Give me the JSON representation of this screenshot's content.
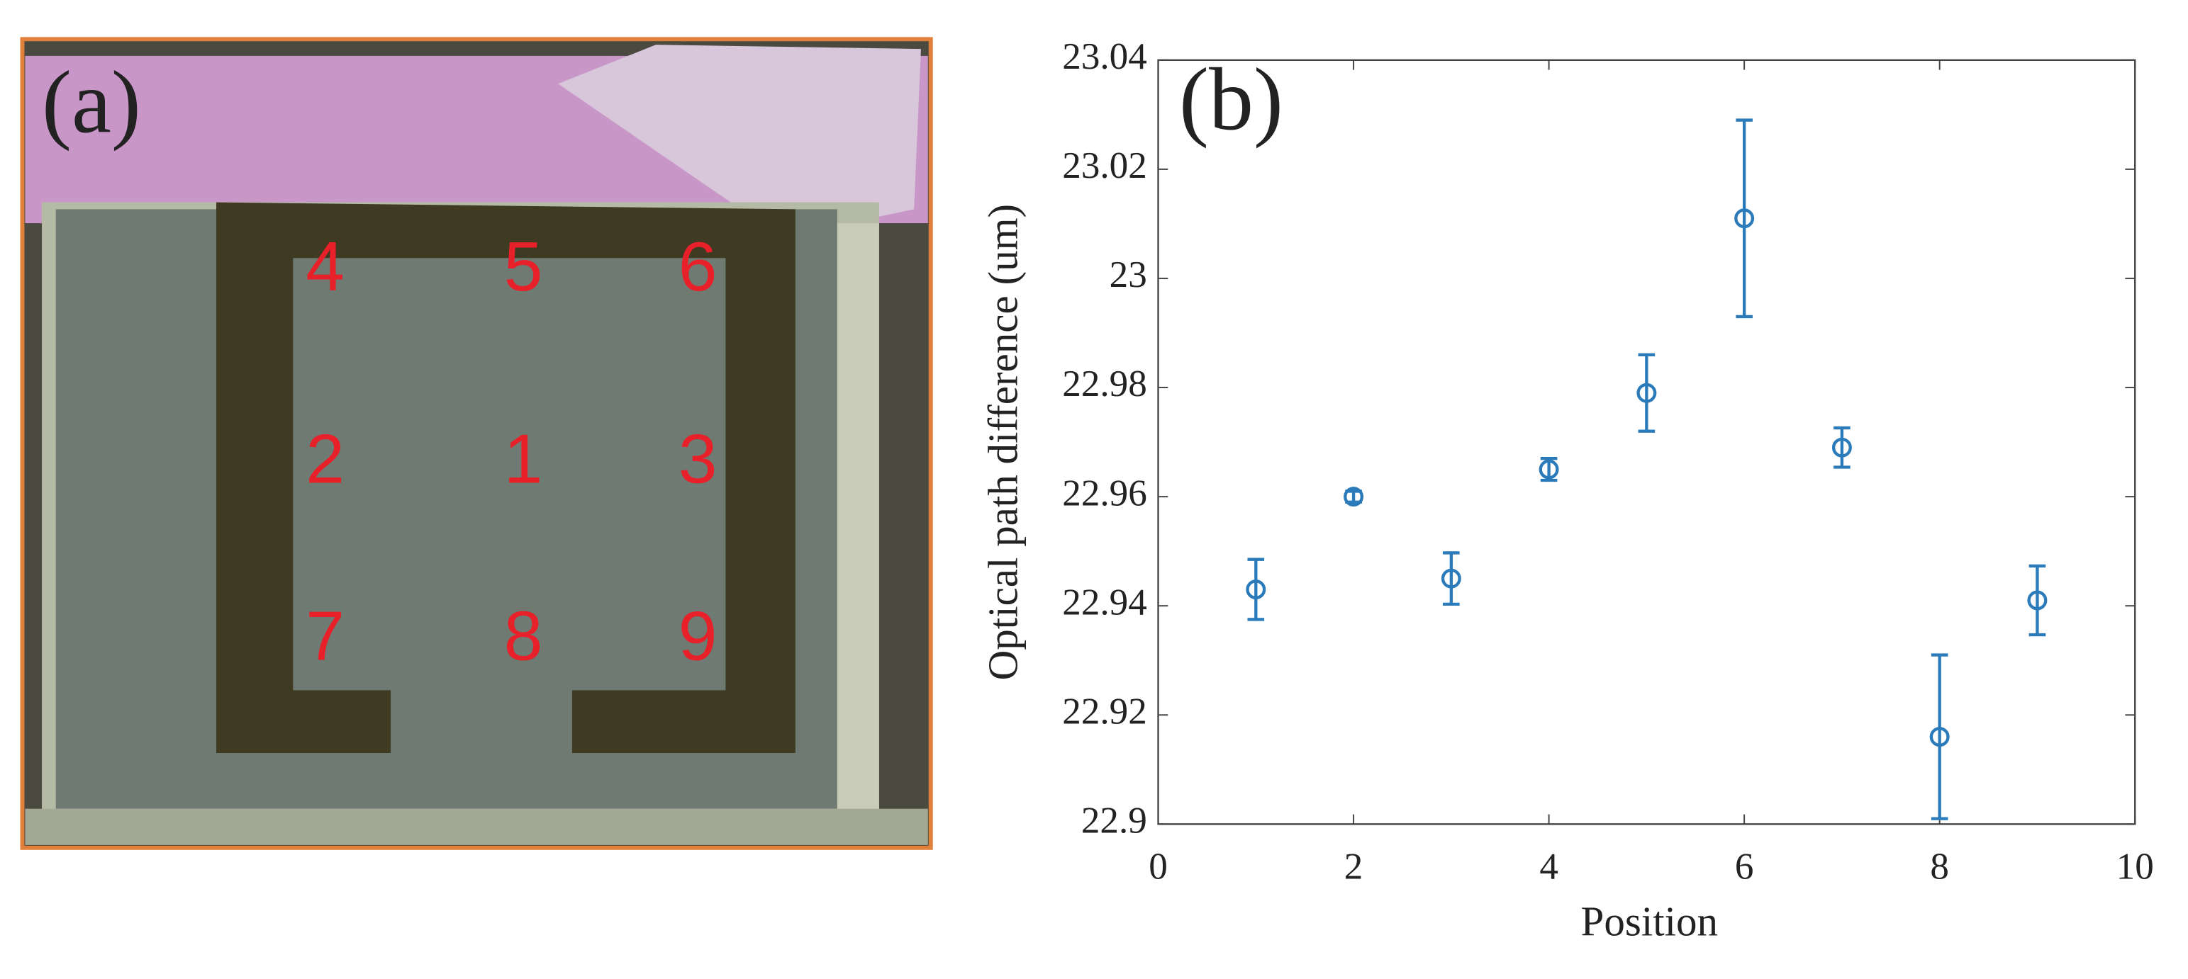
{
  "photo": {
    "label": "(a)",
    "position_labels": [
      "4",
      "5",
      "6",
      "2",
      "1",
      "3",
      "7",
      "8",
      "9"
    ]
  },
  "chart_data": {
    "type": "scatter",
    "label": "(b)",
    "xlabel": "Position",
    "ylabel": "Optical path difference (um)",
    "x": [
      1,
      2,
      3,
      4,
      5,
      6,
      7,
      8,
      9
    ],
    "values": [
      22.943,
      22.96,
      22.945,
      22.965,
      22.979,
      23.011,
      22.969,
      22.916,
      22.941
    ],
    "errors": [
      0.0055,
      0.001,
      0.0047,
      0.002,
      0.007,
      0.018,
      0.0036,
      0.015,
      0.0063
    ],
    "color": "#2b7bba",
    "xlim": [
      0,
      10
    ],
    "xticks": [
      0,
      2,
      4,
      6,
      8,
      10
    ],
    "ylim": [
      22.9,
      23.04
    ],
    "yticks": [
      22.9,
      22.92,
      22.94,
      22.96,
      22.98,
      23,
      23.02,
      23.04
    ]
  }
}
